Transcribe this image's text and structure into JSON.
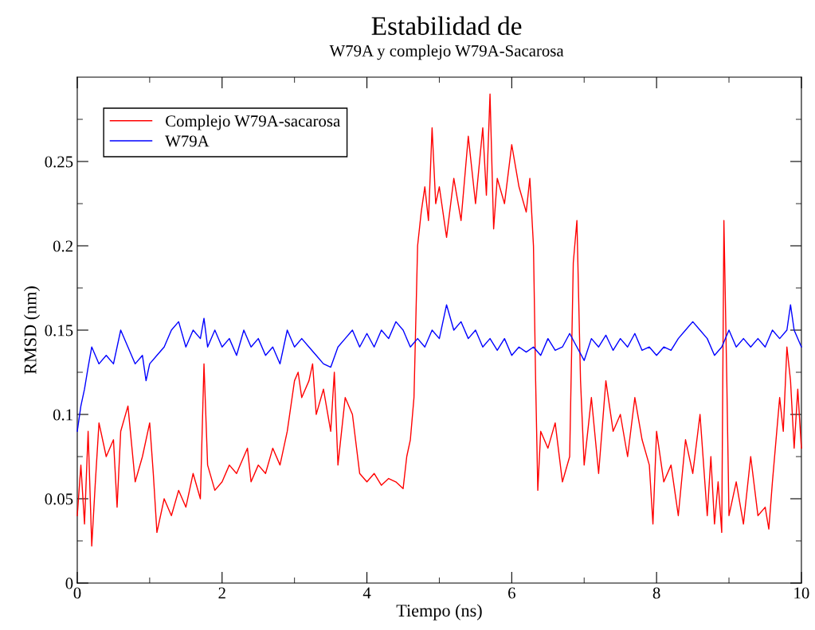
{
  "chart_data": {
    "type": "line",
    "title": "Estabilidad de",
    "subtitle": "W79A y complejo W79A-Sacarosa",
    "xlabel": "Tiempo (ns)",
    "ylabel": "RMSD (nm)",
    "xlim": [
      0,
      10
    ],
    "ylim": [
      0,
      0.3
    ],
    "xticks": [
      0,
      2,
      4,
      6,
      8,
      10
    ],
    "yticks": [
      0,
      0.05,
      0.1,
      0.15,
      0.2,
      0.25
    ],
    "grid": false,
    "legend": "top left",
    "marker": "none",
    "line_style": "solid",
    "series": [
      {
        "name": "Complejo W79A-sacarosa",
        "color": "#ff0000",
        "x": [
          0.0,
          0.05,
          0.1,
          0.15,
          0.2,
          0.25,
          0.3,
          0.4,
          0.5,
          0.55,
          0.6,
          0.7,
          0.8,
          0.9,
          1.0,
          1.05,
          1.1,
          1.2,
          1.3,
          1.4,
          1.5,
          1.6,
          1.7,
          1.75,
          1.8,
          1.9,
          2.0,
          2.1,
          2.2,
          2.3,
          2.35,
          2.4,
          2.5,
          2.6,
          2.7,
          2.8,
          2.9,
          3.0,
          3.05,
          3.1,
          3.2,
          3.25,
          3.3,
          3.4,
          3.5,
          3.55,
          3.6,
          3.7,
          3.8,
          3.9,
          4.0,
          4.1,
          4.2,
          4.3,
          4.4,
          4.5,
          4.55,
          4.6,
          4.65,
          4.7,
          4.75,
          4.8,
          4.85,
          4.9,
          4.95,
          5.0,
          5.1,
          5.2,
          5.3,
          5.4,
          5.5,
          5.6,
          5.65,
          5.7,
          5.75,
          5.8,
          5.9,
          6.0,
          6.1,
          6.2,
          6.25,
          6.3,
          6.33,
          6.36,
          6.4,
          6.5,
          6.6,
          6.7,
          6.8,
          6.85,
          6.9,
          6.95,
          7.0,
          7.1,
          7.2,
          7.3,
          7.4,
          7.5,
          7.6,
          7.7,
          7.8,
          7.9,
          7.95,
          8.0,
          8.1,
          8.2,
          8.3,
          8.4,
          8.5,
          8.6,
          8.7,
          8.75,
          8.8,
          8.85,
          8.9,
          8.93,
          8.97,
          9.0,
          9.1,
          9.2,
          9.3,
          9.4,
          9.5,
          9.55,
          9.6,
          9.7,
          9.75,
          9.8,
          9.85,
          9.9,
          9.95,
          10.0
        ],
        "values": [
          0.04,
          0.07,
          0.035,
          0.09,
          0.022,
          0.06,
          0.095,
          0.075,
          0.085,
          0.045,
          0.09,
          0.105,
          0.06,
          0.075,
          0.095,
          0.065,
          0.03,
          0.05,
          0.04,
          0.055,
          0.045,
          0.065,
          0.05,
          0.13,
          0.07,
          0.055,
          0.06,
          0.07,
          0.065,
          0.075,
          0.08,
          0.06,
          0.07,
          0.065,
          0.08,
          0.07,
          0.09,
          0.12,
          0.125,
          0.11,
          0.12,
          0.13,
          0.1,
          0.115,
          0.09,
          0.125,
          0.07,
          0.11,
          0.1,
          0.065,
          0.06,
          0.065,
          0.058,
          0.062,
          0.06,
          0.056,
          0.075,
          0.085,
          0.11,
          0.2,
          0.22,
          0.235,
          0.215,
          0.27,
          0.225,
          0.235,
          0.205,
          0.24,
          0.215,
          0.265,
          0.225,
          0.27,
          0.23,
          0.29,
          0.21,
          0.24,
          0.225,
          0.26,
          0.235,
          0.22,
          0.24,
          0.2,
          0.12,
          0.055,
          0.09,
          0.08,
          0.095,
          0.06,
          0.075,
          0.19,
          0.215,
          0.12,
          0.07,
          0.11,
          0.065,
          0.12,
          0.09,
          0.1,
          0.075,
          0.11,
          0.085,
          0.07,
          0.035,
          0.09,
          0.06,
          0.07,
          0.04,
          0.085,
          0.065,
          0.1,
          0.04,
          0.075,
          0.035,
          0.06,
          0.03,
          0.215,
          0.12,
          0.04,
          0.06,
          0.035,
          0.075,
          0.04,
          0.045,
          0.032,
          0.06,
          0.11,
          0.09,
          0.14,
          0.12,
          0.08,
          0.115,
          0.08
        ]
      },
      {
        "name": "W79A",
        "color": "#0000ff",
        "x": [
          0,
          0.05,
          0.1,
          0.15,
          0.2,
          0.3,
          0.4,
          0.5,
          0.6,
          0.7,
          0.8,
          0.9,
          0.95,
          1.0,
          1.1,
          1.2,
          1.3,
          1.4,
          1.5,
          1.6,
          1.7,
          1.75,
          1.8,
          1.9,
          2.0,
          2.1,
          2.2,
          2.3,
          2.4,
          2.5,
          2.6,
          2.7,
          2.8,
          2.9,
          3.0,
          3.1,
          3.2,
          3.3,
          3.4,
          3.5,
          3.6,
          3.7,
          3.8,
          3.9,
          4.0,
          4.1,
          4.2,
          4.3,
          4.4,
          4.5,
          4.6,
          4.7,
          4.8,
          4.9,
          5.0,
          5.1,
          5.2,
          5.3,
          5.4,
          5.5,
          5.6,
          5.7,
          5.8,
          5.9,
          6.0,
          6.1,
          6.2,
          6.3,
          6.4,
          6.5,
          6.6,
          6.7,
          6.8,
          6.9,
          7.0,
          7.1,
          7.2,
          7.3,
          7.4,
          7.5,
          7.6,
          7.7,
          7.8,
          7.9,
          8.0,
          8.1,
          8.2,
          8.3,
          8.4,
          8.5,
          8.6,
          8.7,
          8.8,
          8.9,
          9.0,
          9.1,
          9.2,
          9.3,
          9.4,
          9.5,
          9.6,
          9.7,
          9.8,
          9.85,
          9.9,
          10.0
        ],
        "values": [
          0.09,
          0.105,
          0.115,
          0.128,
          0.14,
          0.13,
          0.135,
          0.13,
          0.15,
          0.14,
          0.13,
          0.135,
          0.12,
          0.13,
          0.135,
          0.14,
          0.15,
          0.155,
          0.14,
          0.15,
          0.145,
          0.157,
          0.14,
          0.15,
          0.14,
          0.145,
          0.135,
          0.15,
          0.14,
          0.145,
          0.135,
          0.14,
          0.13,
          0.15,
          0.14,
          0.145,
          0.14,
          0.135,
          0.13,
          0.128,
          0.14,
          0.145,
          0.15,
          0.14,
          0.148,
          0.14,
          0.15,
          0.145,
          0.155,
          0.15,
          0.14,
          0.145,
          0.14,
          0.15,
          0.145,
          0.165,
          0.15,
          0.155,
          0.145,
          0.15,
          0.14,
          0.145,
          0.138,
          0.145,
          0.135,
          0.14,
          0.137,
          0.14,
          0.135,
          0.145,
          0.138,
          0.14,
          0.148,
          0.14,
          0.132,
          0.145,
          0.14,
          0.147,
          0.138,
          0.145,
          0.14,
          0.148,
          0.138,
          0.14,
          0.135,
          0.14,
          0.138,
          0.145,
          0.15,
          0.155,
          0.15,
          0.145,
          0.135,
          0.14,
          0.15,
          0.14,
          0.145,
          0.14,
          0.145,
          0.14,
          0.15,
          0.145,
          0.15,
          0.165,
          0.15,
          0.14
        ]
      }
    ]
  }
}
